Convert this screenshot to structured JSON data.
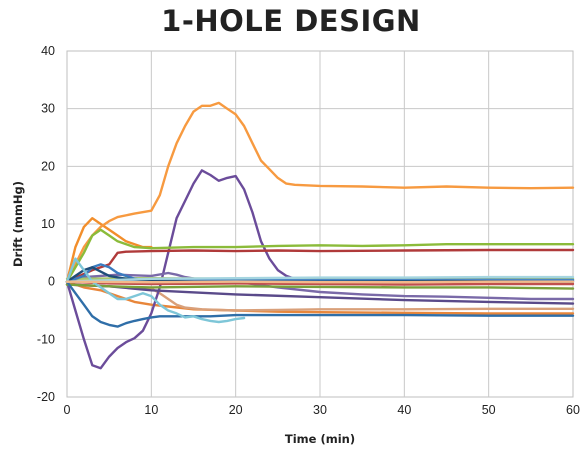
{
  "chart_data": {
    "type": "line",
    "title": "1-HOLE DESIGN",
    "xlabel": "Time (min)",
    "ylabel": "Drift (mmHg)",
    "xlim": [
      0,
      60
    ],
    "ylim": [
      -20,
      40
    ],
    "x_ticks": [
      "0",
      "10",
      "20",
      "30",
      "40",
      "50",
      "60"
    ],
    "y_ticks": [
      "-20",
      "-10",
      "0",
      "10",
      "20",
      "30",
      "40"
    ],
    "grid": true,
    "legend": "none",
    "series": [
      {
        "color": "#f28e2b",
        "points": [
          [
            0,
            0
          ],
          [
            1,
            6
          ],
          [
            2,
            9.5
          ],
          [
            3,
            11
          ],
          [
            4,
            10
          ],
          [
            5,
            9
          ],
          [
            6,
            8
          ],
          [
            7,
            7
          ],
          [
            8,
            6.5
          ],
          [
            9,
            6
          ],
          [
            10,
            6
          ]
        ]
      },
      {
        "color": "#f79a40",
        "points": [
          [
            0,
            0
          ],
          [
            1,
            3
          ],
          [
            2,
            6
          ],
          [
            3,
            8
          ],
          [
            4,
            9.5
          ],
          [
            5,
            10.5
          ],
          [
            6,
            11.2
          ],
          [
            8,
            11.8
          ],
          [
            10,
            12.3
          ],
          [
            11,
            15
          ],
          [
            12,
            20
          ],
          [
            13,
            24
          ],
          [
            14,
            27
          ],
          [
            15,
            29.5
          ],
          [
            16,
            30.5
          ],
          [
            17,
            30.5
          ],
          [
            18,
            31
          ],
          [
            19,
            30
          ],
          [
            20,
            29
          ],
          [
            21,
            27
          ],
          [
            22,
            24
          ],
          [
            23,
            21
          ],
          [
            24,
            19.5
          ],
          [
            25,
            18
          ],
          [
            26,
            17
          ],
          [
            27,
            16.8
          ],
          [
            30,
            16.6
          ],
          [
            35,
            16.5
          ],
          [
            40,
            16.3
          ],
          [
            45,
            16.5
          ],
          [
            50,
            16.3
          ],
          [
            55,
            16.2
          ],
          [
            60,
            16.3
          ]
        ]
      },
      {
        "color": "#e8863a",
        "points": [
          [
            0,
            0
          ],
          [
            2,
            -1
          ],
          [
            4,
            -1.5
          ],
          [
            6,
            -2.5
          ],
          [
            8,
            -3.5
          ],
          [
            10,
            -4
          ],
          [
            12,
            -4.3
          ],
          [
            15,
            -4.8
          ],
          [
            20,
            -5
          ],
          [
            25,
            -5.2
          ],
          [
            30,
            -5.3
          ],
          [
            40,
            -5.4
          ],
          [
            50,
            -5.5
          ],
          [
            60,
            -5.5
          ]
        ]
      },
      {
        "color": "#d9a07a",
        "points": [
          [
            0,
            -0.5
          ],
          [
            5,
            -0.8
          ],
          [
            10,
            -1.2
          ],
          [
            11,
            -2
          ],
          [
            12,
            -3
          ],
          [
            13,
            -4
          ],
          [
            14,
            -4.5
          ],
          [
            16,
            -4.8
          ],
          [
            20,
            -5
          ],
          [
            25,
            -4.9
          ],
          [
            30,
            -4.8
          ],
          [
            40,
            -4.8
          ],
          [
            50,
            -4.7
          ],
          [
            60,
            -4.7
          ]
        ]
      },
      {
        "color": "#6b4c9a",
        "points": [
          [
            0,
            0
          ],
          [
            1,
            -5
          ],
          [
            2,
            -10
          ],
          [
            3,
            -14.5
          ],
          [
            4,
            -15
          ],
          [
            5,
            -13
          ],
          [
            6,
            -11.5
          ],
          [
            7,
            -10.5
          ],
          [
            8,
            -9.8
          ],
          [
            9,
            -8.5
          ],
          [
            10,
            -5.5
          ],
          [
            11,
            -1
          ],
          [
            12,
            5
          ],
          [
            13,
            11
          ],
          [
            14,
            14
          ],
          [
            15,
            17
          ],
          [
            16,
            19.3
          ],
          [
            17,
            18.5
          ],
          [
            18,
            17.5
          ],
          [
            19,
            18
          ],
          [
            20,
            18.3
          ],
          [
            21,
            16
          ],
          [
            22,
            12
          ],
          [
            23,
            7
          ],
          [
            24,
            4
          ],
          [
            25,
            2
          ],
          [
            26,
            1
          ],
          [
            27,
            0.5
          ],
          [
            30,
            0.4
          ],
          [
            40,
            0.4
          ],
          [
            50,
            0.4
          ],
          [
            60,
            0.3
          ]
        ]
      },
      {
        "color": "#7a6aa8",
        "points": [
          [
            0,
            0
          ],
          [
            2,
            0.8
          ],
          [
            4,
            1
          ],
          [
            6,
            1.2
          ],
          [
            10,
            1
          ],
          [
            12,
            1.5
          ],
          [
            13,
            1.2
          ],
          [
            14,
            0.8
          ],
          [
            16,
            0.3
          ],
          [
            20,
            0
          ],
          [
            25,
            -1
          ],
          [
            30,
            -1.8
          ],
          [
            35,
            -2.2
          ],
          [
            40,
            -2.5
          ],
          [
            45,
            -2.6
          ],
          [
            50,
            -2.8
          ],
          [
            55,
            -3
          ],
          [
            60,
            -3
          ]
        ]
      },
      {
        "color": "#5a4a8a",
        "points": [
          [
            0,
            -0.5
          ],
          [
            5,
            -0.8
          ],
          [
            10,
            -1.5
          ],
          [
            20,
            -2.2
          ],
          [
            30,
            -2.7
          ],
          [
            40,
            -3.2
          ],
          [
            50,
            -3.5
          ],
          [
            60,
            -3.8
          ]
        ]
      },
      {
        "color": "#8bbb3a",
        "points": [
          [
            0,
            0
          ],
          [
            2,
            5
          ],
          [
            3,
            8
          ],
          [
            4,
            9
          ],
          [
            5,
            8
          ],
          [
            6,
            7
          ],
          [
            8,
            6
          ],
          [
            10,
            5.8
          ],
          [
            15,
            6
          ],
          [
            20,
            6
          ],
          [
            25,
            6.2
          ],
          [
            30,
            6.3
          ],
          [
            35,
            6.2
          ],
          [
            40,
            6.3
          ],
          [
            45,
            6.5
          ],
          [
            50,
            6.5
          ],
          [
            55,
            6.5
          ],
          [
            60,
            6.5
          ]
        ]
      },
      {
        "color": "#7aa03a",
        "points": [
          [
            0,
            -0.5
          ],
          [
            5,
            -0.8
          ],
          [
            10,
            -1
          ],
          [
            20,
            -0.8
          ],
          [
            30,
            -0.9
          ],
          [
            40,
            -1
          ],
          [
            50,
            -1
          ],
          [
            60,
            -1.2
          ]
        ]
      },
      {
        "color": "#a8c66c",
        "points": [
          [
            0,
            0.5
          ],
          [
            10,
            0.6
          ],
          [
            20,
            0.5
          ],
          [
            30,
            0.4
          ],
          [
            40,
            0.4
          ],
          [
            50,
            0.5
          ],
          [
            60,
            0.5
          ]
        ]
      },
      {
        "color": "#b03a3a",
        "points": [
          [
            0,
            0
          ],
          [
            3,
            2
          ],
          [
            5,
            3
          ],
          [
            6,
            5
          ],
          [
            7,
            5.2
          ],
          [
            10,
            5.3
          ],
          [
            15,
            5.4
          ],
          [
            20,
            5.3
          ],
          [
            25,
            5.4
          ],
          [
            30,
            5.3
          ],
          [
            40,
            5.4
          ],
          [
            50,
            5.5
          ],
          [
            60,
            5.5
          ]
        ]
      },
      {
        "color": "#c0504d",
        "points": [
          [
            0,
            0
          ],
          [
            5,
            -0.3
          ],
          [
            10,
            -0.4
          ],
          [
            20,
            -0.3
          ],
          [
            30,
            -0.4
          ],
          [
            40,
            -0.5
          ],
          [
            50,
            -0.4
          ],
          [
            60,
            -0.4
          ]
        ]
      },
      {
        "color": "#2f6ea8",
        "points": [
          [
            0,
            0
          ],
          [
            1,
            -2
          ],
          [
            2,
            -4
          ],
          [
            3,
            -6
          ],
          [
            4,
            -7
          ],
          [
            5,
            -7.5
          ],
          [
            6,
            -7.8
          ],
          [
            7,
            -7.2
          ],
          [
            8,
            -6.8
          ],
          [
            9,
            -6.5
          ],
          [
            10,
            -6.2
          ],
          [
            11,
            -6
          ],
          [
            12,
            -6
          ],
          [
            14,
            -6
          ],
          [
            17,
            -6
          ],
          [
            20,
            -5.8
          ],
          [
            25,
            -5.8
          ],
          [
            30,
            -5.8
          ],
          [
            40,
            -5.8
          ],
          [
            50,
            -5.9
          ],
          [
            60,
            -5.9
          ]
        ]
      },
      {
        "color": "#3a7bbf",
        "points": [
          [
            0,
            0
          ],
          [
            2,
            1
          ],
          [
            3,
            2.5
          ],
          [
            4,
            3
          ],
          [
            5,
            2.5
          ],
          [
            6,
            1.5
          ],
          [
            8,
            0.5
          ],
          [
            10,
            0.2
          ],
          [
            20,
            0.1
          ],
          [
            30,
            0.2
          ],
          [
            40,
            0.2
          ],
          [
            50,
            0.3
          ],
          [
            60,
            0.3
          ]
        ]
      },
      {
        "color": "#4a86c6",
        "points": [
          [
            0,
            0
          ],
          [
            5,
            0.1
          ],
          [
            10,
            0.2
          ],
          [
            20,
            0.2
          ],
          [
            30,
            0.3
          ],
          [
            40,
            0.3
          ],
          [
            50,
            0.3
          ],
          [
            60,
            0.2
          ]
        ]
      },
      {
        "color": "#1f4e79",
        "points": [
          [
            0,
            0
          ],
          [
            1,
            1
          ],
          [
            2,
            2
          ],
          [
            3,
            2.5
          ],
          [
            5,
            1
          ],
          [
            7,
            0.5
          ],
          [
            10,
            0.2
          ],
          [
            15,
            0
          ],
          [
            30,
            0
          ],
          [
            45,
            0.1
          ],
          [
            60,
            0
          ]
        ]
      },
      {
        "color": "#7ec6d8",
        "points": [
          [
            0,
            0
          ],
          [
            1,
            4
          ],
          [
            2,
            2
          ],
          [
            3,
            0
          ],
          [
            4,
            -1
          ],
          [
            5,
            -2
          ],
          [
            6,
            -3
          ],
          [
            7,
            -3
          ],
          [
            8,
            -2.5
          ],
          [
            9,
            -2
          ],
          [
            10,
            -2.5
          ],
          [
            11,
            -4
          ],
          [
            12,
            -5
          ],
          [
            13,
            -5.5
          ],
          [
            14,
            -6.2
          ],
          [
            15,
            -6
          ],
          [
            16,
            -6.5
          ],
          [
            17,
            -6.8
          ],
          [
            18,
            -7
          ],
          [
            19,
            -6.8
          ],
          [
            20,
            -6.5
          ],
          [
            21,
            -6.3
          ]
        ]
      },
      {
        "color": "#a5d5e0",
        "points": [
          [
            0,
            0
          ],
          [
            10,
            0.5
          ],
          [
            20,
            0.6
          ],
          [
            30,
            0.7
          ],
          [
            40,
            0.7
          ],
          [
            50,
            0.8
          ],
          [
            60,
            0.8
          ]
        ]
      },
      {
        "color": "#f2b98a",
        "points": [
          [
            0,
            0
          ],
          [
            10,
            -0.1
          ],
          [
            20,
            0
          ],
          [
            30,
            -0.1
          ],
          [
            40,
            -0.1
          ],
          [
            50,
            0
          ],
          [
            60,
            0
          ]
        ]
      }
    ]
  }
}
